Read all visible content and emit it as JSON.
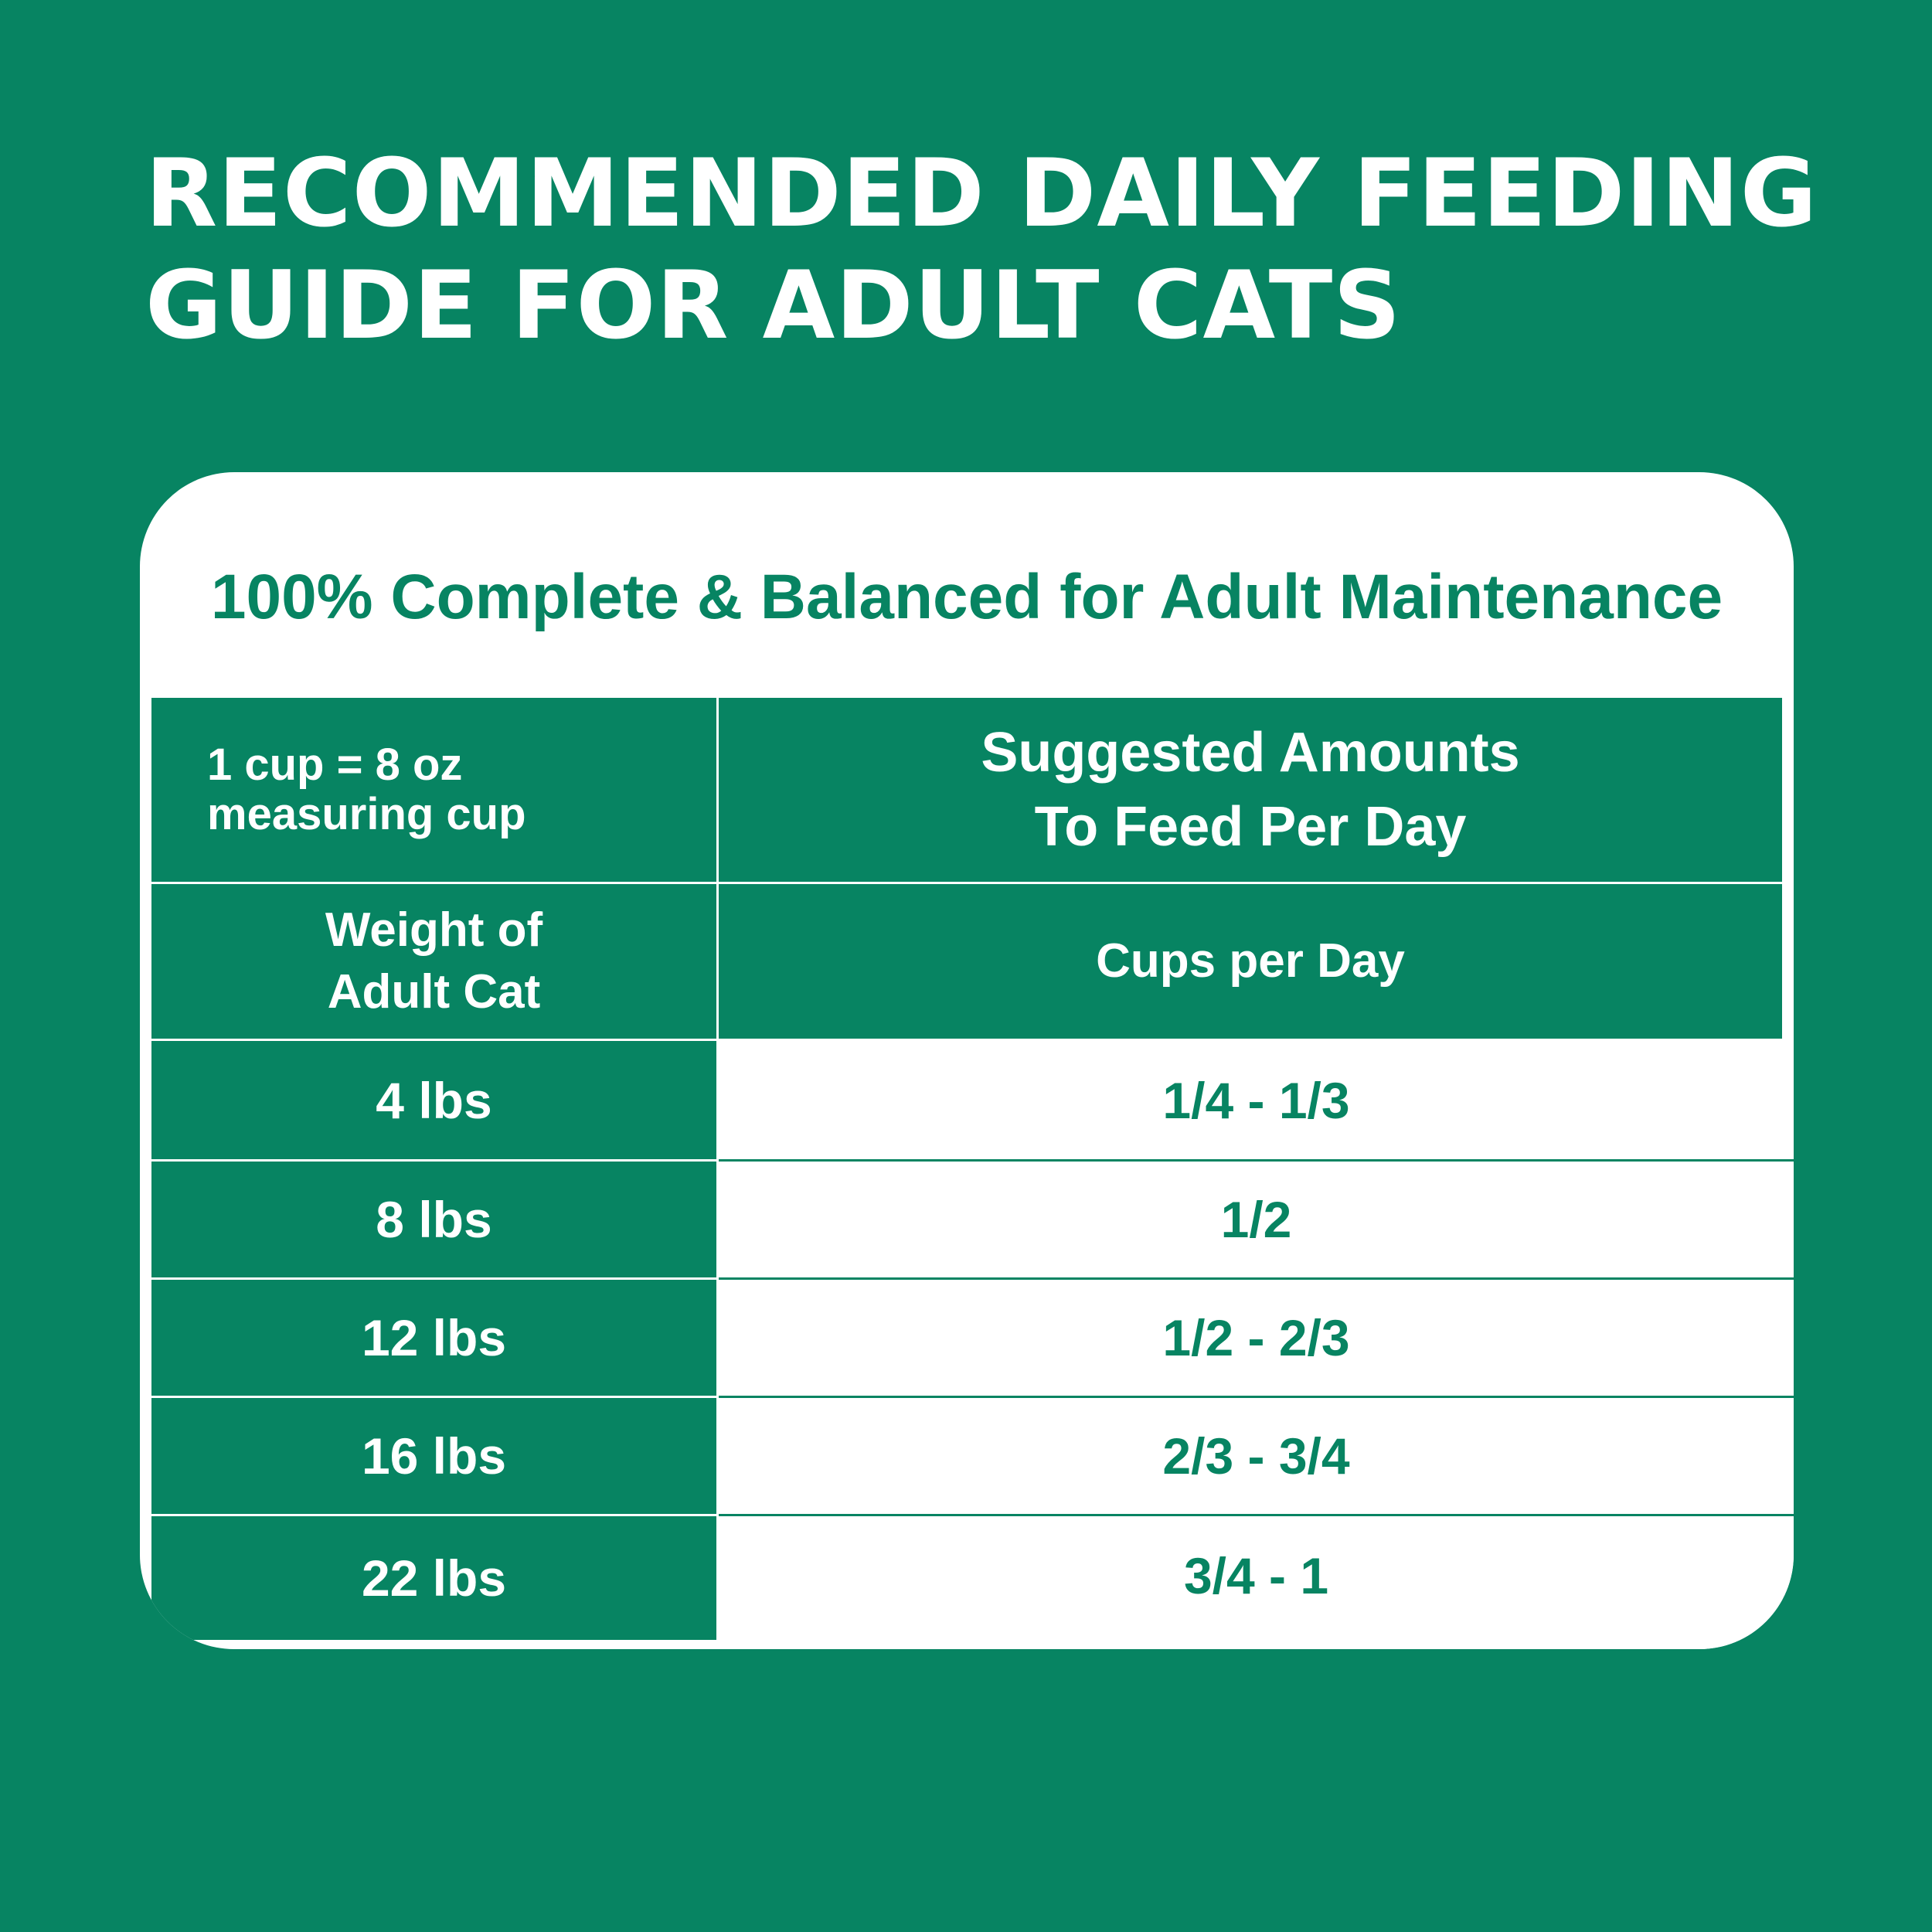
{
  "title": {
    "line1": "RECOMMENDED DAILY FEEDING",
    "line2": "GUIDE FOR ADULT CATS"
  },
  "card": {
    "subtitle": "100% Complete & Balanced for Adult Maintenance"
  },
  "table": {
    "unit_note": {
      "line1": "1 cup = 8 oz",
      "line2": "measuring cup"
    },
    "amounts_header": {
      "line1": "Suggested Amounts",
      "line2": "To Feed Per Day"
    },
    "weight_header": {
      "line1": "Weight of",
      "line2": "Adult Cat"
    },
    "cups_header": "Cups per Day",
    "rows": [
      {
        "weight": "4 lbs",
        "cups": "1/4 - 1/3"
      },
      {
        "weight": "8 lbs",
        "cups": "1/2"
      },
      {
        "weight": "12 lbs",
        "cups": "1/2 - 2/3"
      },
      {
        "weight": "16 lbs",
        "cups": "2/3 - 3/4"
      },
      {
        "weight": "22 lbs",
        "cups": "3/4 - 1"
      }
    ]
  },
  "colors": {
    "brand_green": "#078462",
    "white": "#ffffff"
  }
}
